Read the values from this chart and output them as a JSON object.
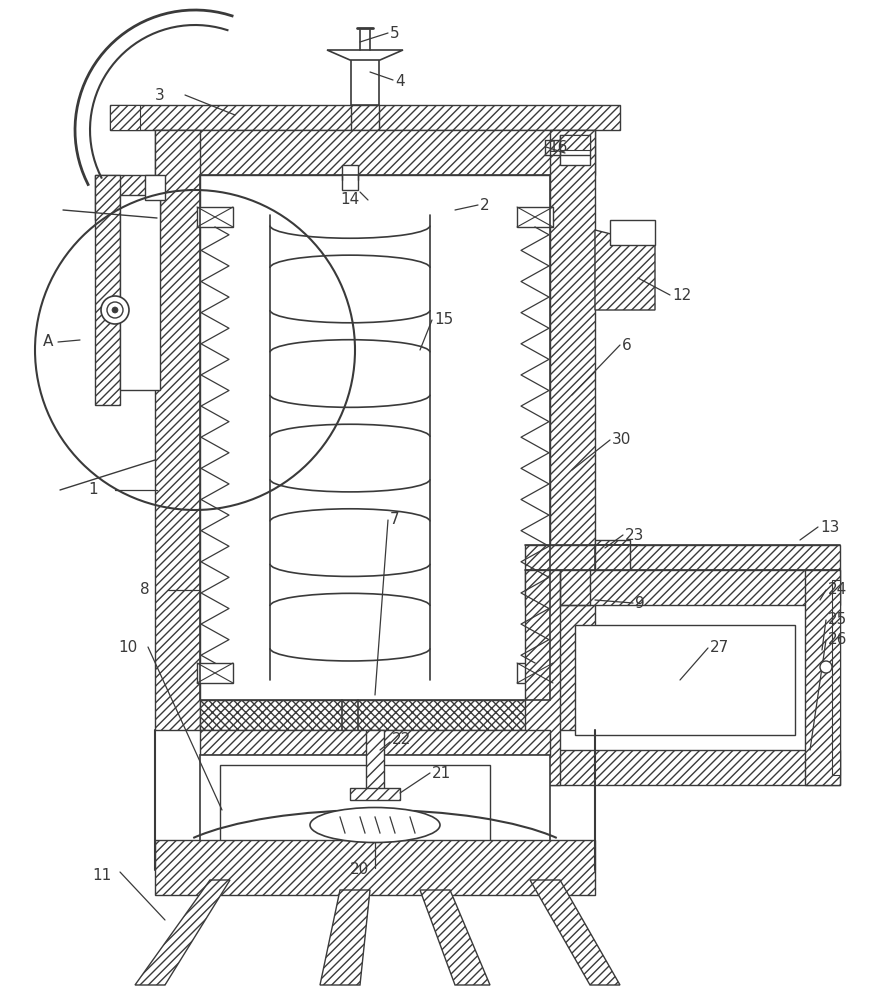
{
  "bg_color": "#ffffff",
  "lc": "#3a3a3a",
  "lw": 1.2,
  "fig_w": 8.71,
  "fig_h": 10.0,
  "dpi": 100
}
